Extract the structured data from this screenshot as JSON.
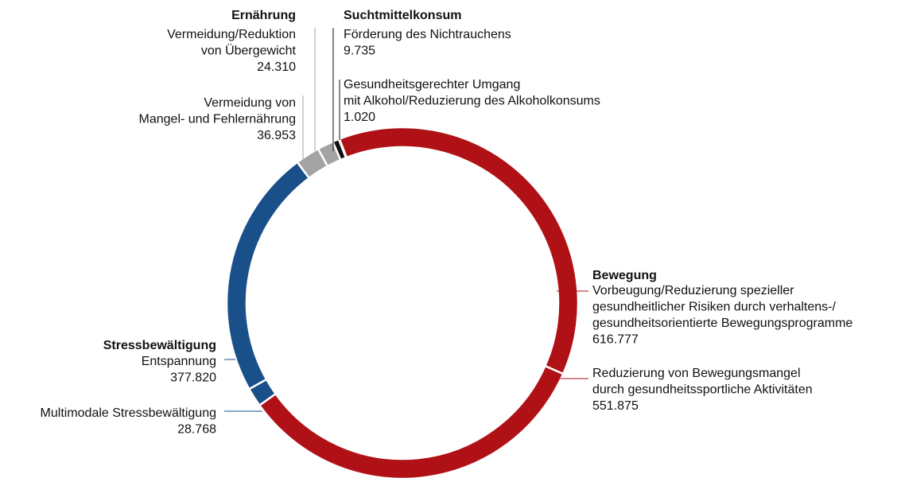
{
  "chart_data": {
    "type": "donut",
    "groups": [
      {
        "name": "Bewegung",
        "color": "#b01116",
        "segments": [
          {
            "label": [
              "Vorbeugung/Reduzierung spezieller",
              "gesundheitlicher Risiken durch verhaltens-/",
              "gesundheitsorientierte Bewegungsprogramme"
            ],
            "value": 616777,
            "value_label": "616.777"
          },
          {
            "label": [
              "Reduzierung von Bewegungsmangel",
              "durch gesundheitssportliche Aktivitäten"
            ],
            "value": 551875,
            "value_label": "551.875"
          }
        ]
      },
      {
        "name": "Stressbewältigung",
        "color": "#1a5089",
        "segments": [
          {
            "label": [
              "Multimodale Stressbewältigung"
            ],
            "value": 28768,
            "value_label": "28.768"
          },
          {
            "label": [
              "Entspannung"
            ],
            "value": 377820,
            "value_label": "377.820"
          }
        ]
      },
      {
        "name": "Ernährung",
        "color": "#a3a3a3",
        "segments": [
          {
            "label": [
              "Vermeidung von",
              "Mangel- und Fehlernährung"
            ],
            "value": 36953,
            "value_label": "36.953"
          },
          {
            "label": [
              "Vermeidung/Reduktion",
              "von Übergewicht"
            ],
            "value": 24310,
            "value_label": "24.310"
          }
        ]
      },
      {
        "name": "Suchtmittelkonsum",
        "color": "#111111",
        "segments": [
          {
            "label": [
              "Förderung des Nichtrauchens"
            ],
            "value": 9735,
            "value_label": "9.735"
          },
          {
            "label": [
              "Gesundheitsgerechter Umgang",
              "mit Alkohol/Reduzierung des Alkoholkonsums"
            ],
            "value": 1020,
            "value_label": "1.020"
          }
        ]
      }
    ]
  }
}
